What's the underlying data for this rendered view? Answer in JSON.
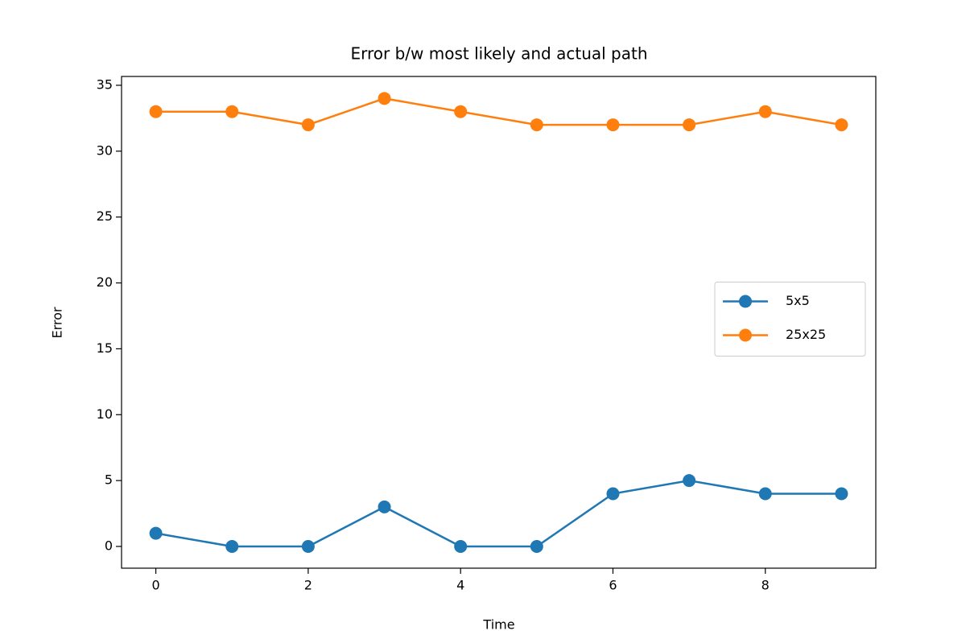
{
  "chart_data": {
    "type": "line",
    "title": "Error b/w most likely and actual path",
    "x_label": "Time",
    "y_label": "Error",
    "x": [
      0,
      1,
      2,
      3,
      4,
      5,
      6,
      7,
      8,
      9
    ],
    "series": [
      {
        "name": "5x5",
        "color": "#1f77b4",
        "values": [
          1,
          0,
          0,
          3,
          0,
          0,
          4,
          5,
          4,
          4
        ]
      },
      {
        "name": "25x25",
        "color": "#ff7f0e",
        "values": [
          33,
          33,
          32,
          34,
          33,
          32,
          32,
          32,
          33,
          32
        ]
      }
    ],
    "xlim": [
      -0.45,
      9.45
    ],
    "xticks": [
      0,
      2,
      4,
      6,
      8
    ],
    "ylim": [
      -1.65,
      35.67
    ],
    "yticks": [
      0,
      5,
      10,
      15,
      20,
      25,
      30,
      35
    ],
    "grid": false,
    "legend": "center right"
  }
}
